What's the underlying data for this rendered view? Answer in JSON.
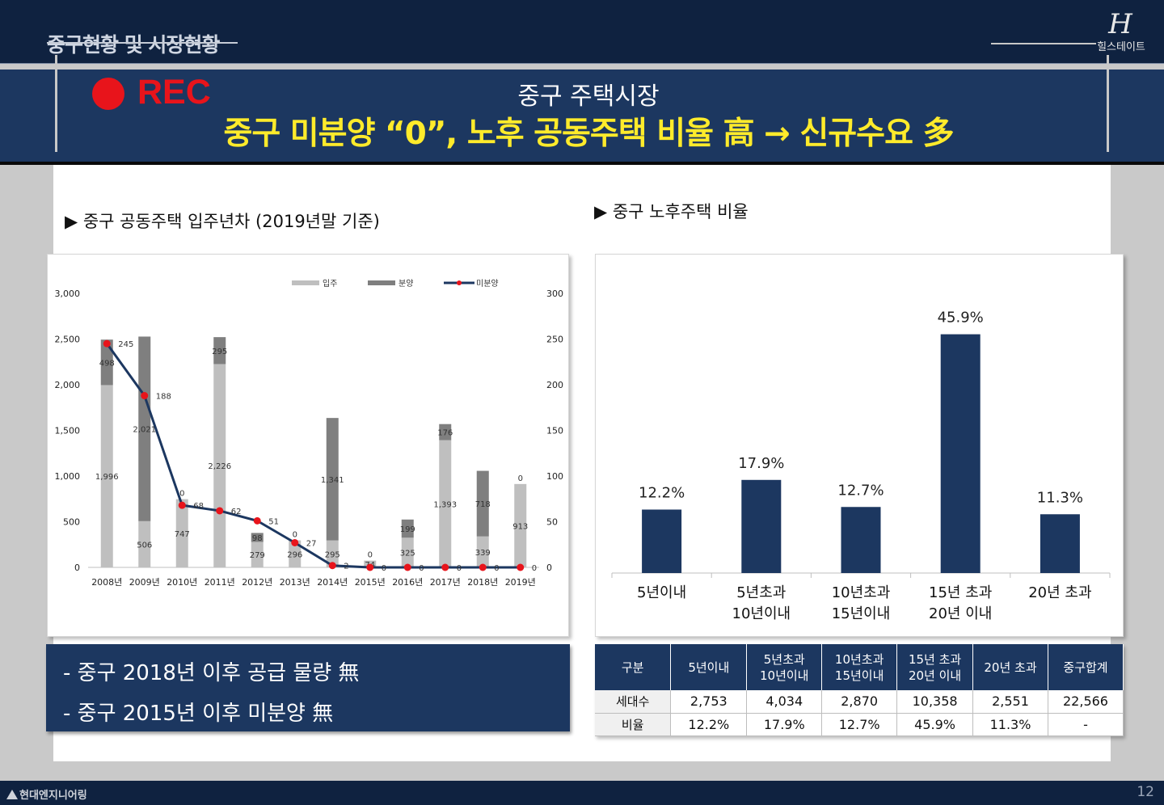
{
  "header": {
    "section_title": "중구현황 및 시장현황",
    "logo_text": "힐스테이트",
    "logo_mark": "H"
  },
  "banner": {
    "rec_label": "REC",
    "subtitle": "중구 주택시장",
    "title": "중구 미분양 “0”, 노후 공동주택 비율 高 → 신규수요 多"
  },
  "left_heading": "▶ 중구 공동주택 입주년차 (2019년말 기준)",
  "right_heading": "▶ 중구 노후주택 비율",
  "notes": [
    "- 중구 2018년 이후 공급 물량 無",
    "- 중구 2015년 이후 미분양 無"
  ],
  "colors": {
    "navy": "#1c3760",
    "occupancy": "#bfbfbf",
    "sale": "#7f7f7f",
    "unsold_line": "#1c3760",
    "unsold_marker": "#e8141b",
    "rec": "#e8141b",
    "highlight": "#ffeb2b"
  },
  "chart_data": [
    {
      "type": "bar",
      "stacked": true,
      "categories": [
        "2008년",
        "2009년",
        "2010년",
        "2011년",
        "2012년",
        "2013년",
        "2014년",
        "2015년",
        "2016년",
        "2017년",
        "2018년",
        "2019년"
      ],
      "series": [
        {
          "name": "입주",
          "values": [
            1996,
            506,
            747,
            2226,
            279,
            296,
            295,
            74,
            325,
            1393,
            339,
            913
          ]
        },
        {
          "name": "분양",
          "values": [
            498,
            2021,
            0,
            295,
            98,
            0,
            1341,
            0,
            199,
            176,
            718,
            0
          ]
        },
        {
          "name": "미분양",
          "type": "line",
          "axis": "right",
          "values": [
            245,
            188,
            68,
            62,
            51,
            27,
            2,
            0,
            0,
            0,
            0,
            0
          ]
        }
      ],
      "ylim_left": [
        0,
        3000
      ],
      "yticks_left": [
        "0",
        "500",
        "1,000",
        "1,500",
        "2,000",
        "2,500",
        "3,000"
      ],
      "ylim_right": [
        0,
        300
      ],
      "yticks_right": [
        "0",
        "50",
        "100",
        "150",
        "200",
        "250",
        "300"
      ],
      "label_text": {
        "occ": [
          "1,996",
          "506",
          "747",
          "2,226",
          "279",
          "296",
          "295",
          "74",
          "325",
          "1,393",
          "339",
          "913"
        ],
        "sale": [
          "498",
          "2,021",
          "0",
          "295",
          "98",
          "0",
          "1,341",
          "0",
          "199",
          "176",
          "718",
          "0"
        ],
        "unsold": [
          "245",
          "188",
          "68",
          "62",
          "51",
          "27",
          "2",
          "0",
          "0",
          "0",
          "0",
          "0"
        ]
      },
      "legend_position": "top"
    },
    {
      "type": "bar",
      "categories": [
        [
          "5년이내"
        ],
        [
          "5년초과",
          "10년이내"
        ],
        [
          "10년초과",
          "15년이내"
        ],
        [
          "15년 초과",
          "20년 이내"
        ],
        [
          "20년 초과"
        ]
      ],
      "values": [
        12.2,
        17.9,
        12.7,
        45.9,
        11.3
      ],
      "value_labels": [
        "12.2%",
        "17.9%",
        "12.7%",
        "45.9%",
        "11.3%"
      ],
      "ylim": [
        0,
        55
      ]
    }
  ],
  "table": {
    "headers": [
      [
        "구분"
      ],
      [
        "5년이내"
      ],
      [
        "5년초과",
        "10년이내"
      ],
      [
        "10년초과",
        "15년이내"
      ],
      [
        "15년 초과",
        "20년 이내"
      ],
      [
        "20년 초과"
      ],
      [
        "중구합계"
      ]
    ],
    "rows": [
      [
        "세대수",
        "2,753",
        "4,034",
        "2,870",
        "10,358",
        "2,551",
        "22,566"
      ],
      [
        "비율",
        "12.2%",
        "17.9%",
        "12.7%",
        "45.9%",
        "11.3%",
        "-"
      ]
    ]
  },
  "footer": {
    "brand": "현대엔지니어링",
    "page": "12"
  }
}
